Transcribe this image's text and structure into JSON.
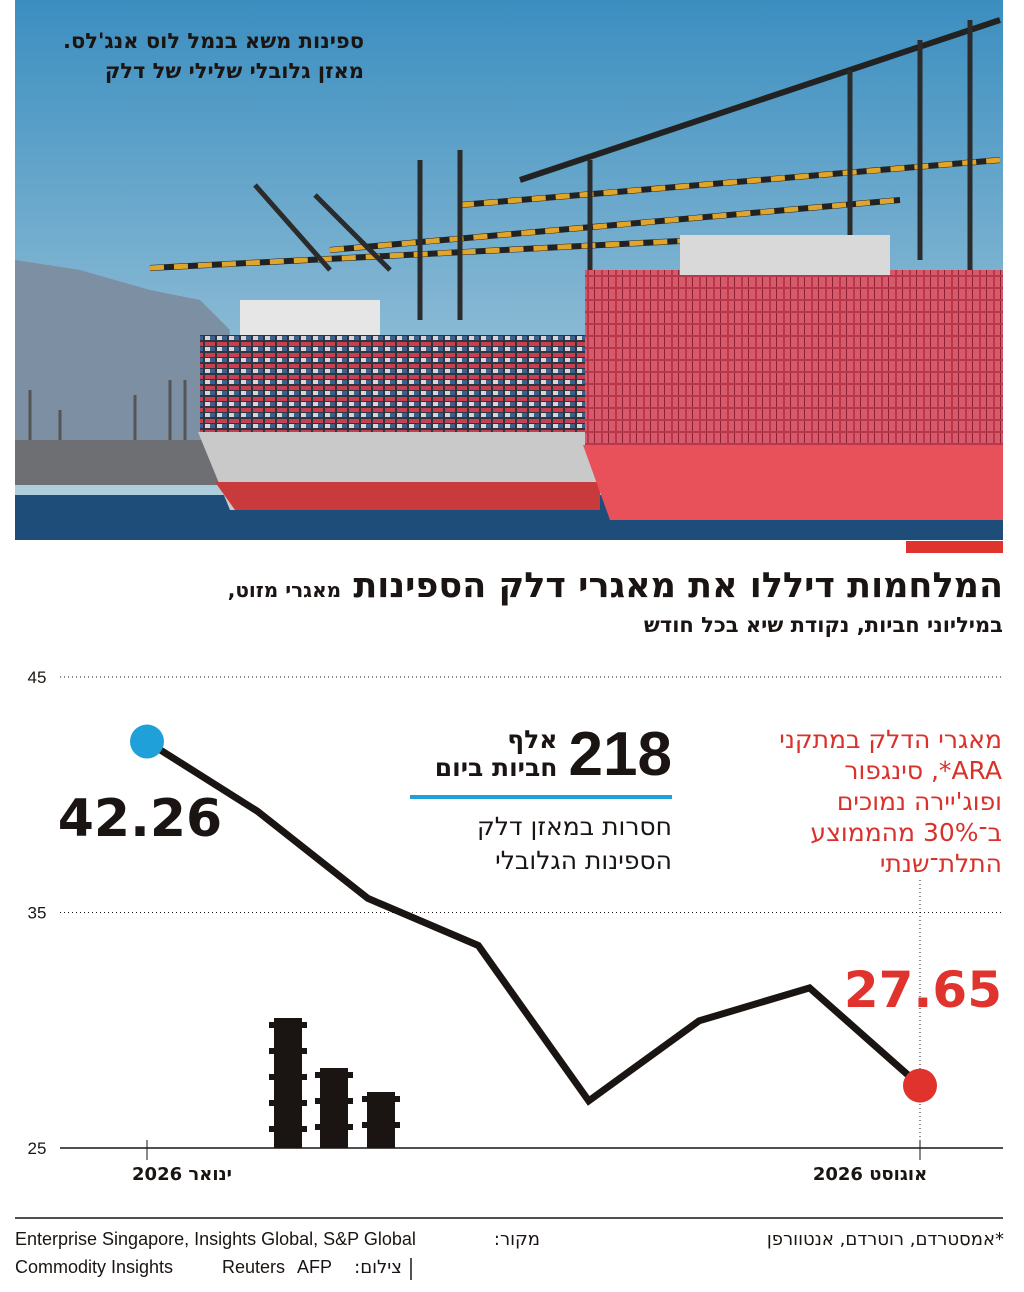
{
  "photo": {
    "caption": [
      "ספינות משא בנמל לוס אנג'לס.",
      "מאזן גלובלי שלילי של דלק"
    ]
  },
  "chart_data": {
    "type": "line",
    "title": "המלחמות דיללו את מאגרי דלק הספינות",
    "subtitle": "מאגרי מזוט,",
    "unit_note": "במיליוני חביות, נקודת שיא בכל חודש",
    "categories": [
      "ינואר 2026",
      null,
      null,
      null,
      null,
      null,
      null,
      "אוגוסט 2026"
    ],
    "series": [
      {
        "color": "#1a1512",
        "values": [
          42.26,
          39.3,
          35.6,
          33.6,
          27.0,
          30.4,
          31.8,
          27.65
        ]
      }
    ],
    "start_color": "#1fa0d8",
    "end_color": "#e0332e",
    "ylim": [
      25,
      45
    ],
    "yticks": [
      25,
      35,
      45
    ],
    "grid": true,
    "annotations": {
      "big_number": "218",
      "unit": "אלף",
      "unit_line2": "חביות ביום",
      "text": [
        "חסרות במאזן דלק",
        "הספינות הגלובלי"
      ],
      "note": [
        "מאגרי הדלק במתקני",
        "ARA*, סינגפור",
        "ופוג'יירה נמוכים",
        "ב־30% מהממוצע",
        "התלת־שנתי"
      ]
    }
  },
  "footer": {
    "footnote": "*אמסטרדם, רוטרדם, אנטוורפן",
    "source_label": "מקור:",
    "source": [
      "Enterprise Singapore, Insights Global, S&P Global",
      "Commodity Insights"
    ],
    "credit_label": "צילום:",
    "credit": [
      "Reuters",
      "AFP"
    ]
  }
}
